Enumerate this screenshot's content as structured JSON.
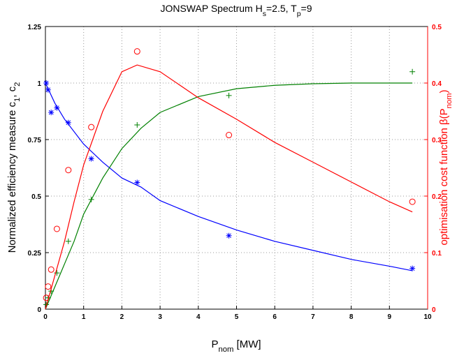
{
  "chart_data": {
    "type": "line",
    "title": [
      "JONSWAP Spectrum H",
      "s",
      "=2.5, T",
      "p",
      "=9"
    ],
    "xlabel": [
      "P",
      "nom",
      " [MW]"
    ],
    "ylabel": [
      "Normalized efficiency measure c",
      "1",
      ", c",
      "2"
    ],
    "y2label": [
      "optimisation cost function β(P",
      "nom",
      ")"
    ],
    "xlim": [
      0,
      10
    ],
    "xticks": [
      0,
      1,
      2,
      3,
      4,
      5,
      6,
      7,
      8,
      9,
      10
    ],
    "ylim": [
      0,
      1.25
    ],
    "yticks": [
      0,
      0.25,
      0.5,
      0.75,
      1,
      1.25
    ],
    "y2lim": [
      0,
      0.5
    ],
    "y2ticks": [
      0,
      0.1,
      0.2,
      0.3,
      0.4,
      0.5
    ],
    "grid": true,
    "y2color": "#ff0000",
    "series": [
      {
        "color": "#0000ff",
        "marker": "none",
        "axis": "y",
        "x": [
          0,
          0.25,
          0.5,
          1,
          1.5,
          2,
          2.5,
          3,
          4,
          5,
          6,
          7,
          8,
          9,
          9.6
        ],
        "values": [
          1.0,
          0.91,
          0.84,
          0.73,
          0.65,
          0.58,
          0.54,
          0.48,
          0.41,
          0.35,
          0.3,
          0.26,
          0.22,
          0.19,
          0.17
        ]
      },
      {
        "color": "#0000ff",
        "marker": "*",
        "axis": "y",
        "x": [
          0.02,
          0.07,
          0.15,
          0.3,
          0.6,
          1.2,
          2.4,
          4.8,
          9.6
        ],
        "values": [
          1.0,
          0.97,
          0.87,
          0.89,
          0.825,
          0.665,
          0.56,
          0.325,
          0.18
        ]
      },
      {
        "color": "#008000",
        "marker": "none",
        "axis": "y",
        "x": [
          0,
          0.25,
          0.5,
          0.75,
          1,
          1.5,
          2,
          2.5,
          3,
          4,
          5,
          6,
          7,
          8,
          9.6
        ],
        "values": [
          0,
          0.1,
          0.2,
          0.3,
          0.42,
          0.58,
          0.71,
          0.8,
          0.87,
          0.94,
          0.975,
          0.99,
          0.997,
          1.0,
          1.0
        ]
      },
      {
        "color": "#008000",
        "marker": "+",
        "axis": "y",
        "x": [
          0.02,
          0.07,
          0.15,
          0.3,
          0.6,
          1.2,
          2.4,
          4.8,
          9.6
        ],
        "values": [
          0.02,
          0.05,
          0.08,
          0.16,
          0.3,
          0.485,
          0.815,
          0.945,
          1.05
        ]
      },
      {
        "color": "#ff0000",
        "marker": "none",
        "axis": "y2",
        "x": [
          0,
          0.25,
          0.5,
          0.75,
          1,
          1.5,
          2,
          2.4,
          3,
          4,
          5,
          6,
          7,
          8,
          9,
          9.6
        ],
        "values": [
          0,
          0.06,
          0.12,
          0.19,
          0.255,
          0.35,
          0.42,
          0.432,
          0.42,
          0.374,
          0.336,
          0.295,
          0.26,
          0.225,
          0.19,
          0.172
        ]
      },
      {
        "color": "#ff0000",
        "marker": "o",
        "axis": "y2",
        "x": [
          0.02,
          0.07,
          0.15,
          0.3,
          0.6,
          1.2,
          2.4,
          4.8,
          9.6
        ],
        "values": [
          0.02,
          0.04,
          0.07,
          0.142,
          0.246,
          0.322,
          0.456,
          0.308,
          0.19
        ]
      }
    ]
  }
}
